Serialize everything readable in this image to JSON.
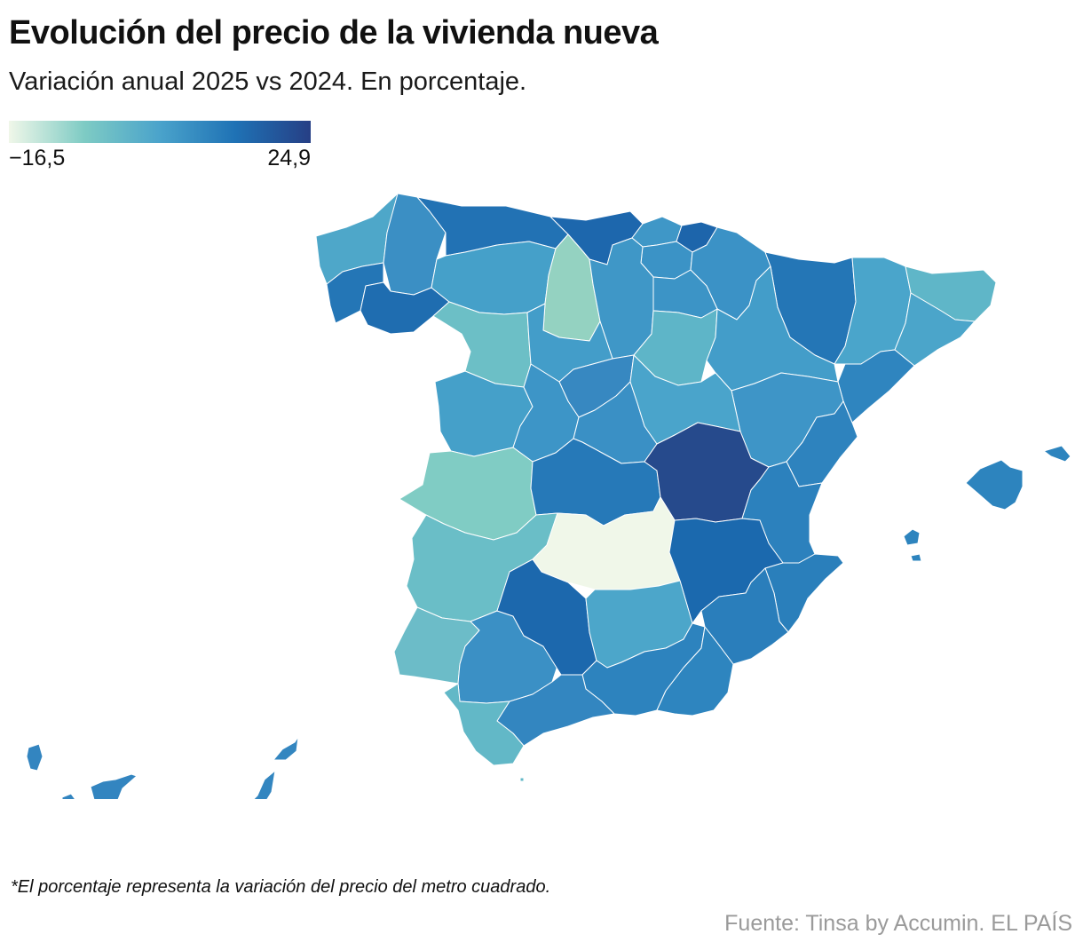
{
  "header": {
    "title": "Evolución del precio de la vivienda nueva",
    "subtitle": "Variación anual 2025 vs 2024. En porcentaje."
  },
  "legend": {
    "min_label": "−16,5",
    "max_label": "24,9",
    "color_stops": [
      "#f0f7e9",
      "#7ecbc4",
      "#4aa3cb",
      "#1f72b5",
      "#263f85"
    ]
  },
  "map": {
    "regions": [
      {
        "name": "A Coruña",
        "color": "#4ea7c9"
      },
      {
        "name": "Lugo",
        "color": "#3b8fc4"
      },
      {
        "name": "Pontevedra",
        "color": "#2476b6"
      },
      {
        "name": "Ourense",
        "color": "#1f6db0"
      },
      {
        "name": "Asturias",
        "color": "#2272b4"
      },
      {
        "name": "Cantabria",
        "color": "#1d67ad"
      },
      {
        "name": "Vizcaya",
        "color": "#3f97c7"
      },
      {
        "name": "Guipúzcoa",
        "color": "#1d65ab"
      },
      {
        "name": "Álava",
        "color": "#3b93c6"
      },
      {
        "name": "Navarra",
        "color": "#3b92c6"
      },
      {
        "name": "Huesca",
        "color": "#2476b6"
      },
      {
        "name": "Girona",
        "color": "#4aa5cb"
      },
      {
        "name": "Lleida",
        "color": "#5fb6c8"
      },
      {
        "name": "Barcelona",
        "color": "#4ba5ca"
      },
      {
        "name": "Tarragona",
        "color": "#2f85bf"
      },
      {
        "name": "León",
        "color": "#45a0c9"
      },
      {
        "name": "Palencia",
        "color": "#94d2c1"
      },
      {
        "name": "Burgos",
        "color": "#3f97c7"
      },
      {
        "name": "La Rioja",
        "color": "#3c94c6"
      },
      {
        "name": "Zamora",
        "color": "#6cbfc6"
      },
      {
        "name": "Valladolid",
        "color": "#439dc9"
      },
      {
        "name": "Soria",
        "color": "#5eb5c8"
      },
      {
        "name": "Zaragoza",
        "color": "#439dc9"
      },
      {
        "name": "Teruel",
        "color": "#3e95c7"
      },
      {
        "name": "Salamanca",
        "color": "#45a0c9"
      },
      {
        "name": "Segovia",
        "color": "#3788c1"
      },
      {
        "name": "Ávila",
        "color": "#3d95c7"
      },
      {
        "name": "Madrid",
        "color": "#3a90c5"
      },
      {
        "name": "Guadalajara",
        "color": "#4aa4cb"
      },
      {
        "name": "Cáceres",
        "color": "#80ccc4"
      },
      {
        "name": "Toledo",
        "color": "#2679b8"
      },
      {
        "name": "Cuenca",
        "color": "#264a8c"
      },
      {
        "name": "Castellón",
        "color": "#2e83be"
      },
      {
        "name": "Valencia",
        "color": "#2c81bd"
      },
      {
        "name": "Badajoz",
        "color": "#6abec7"
      },
      {
        "name": "Ciudad Real",
        "color": "#f0f7e9"
      },
      {
        "name": "Albacete",
        "color": "#1b69ae"
      },
      {
        "name": "Alicante",
        "color": "#2a7fbb"
      },
      {
        "name": "Huelva",
        "color": "#6cbcc8"
      },
      {
        "name": "Sevilla",
        "color": "#3b90c5"
      },
      {
        "name": "Córdoba",
        "color": "#1c68ad"
      },
      {
        "name": "Jaén",
        "color": "#4ca6ca"
      },
      {
        "name": "Murcia",
        "color": "#2a7ebb"
      },
      {
        "name": "Granada",
        "color": "#2d83be"
      },
      {
        "name": "Almería",
        "color": "#2e85bf"
      },
      {
        "name": "Málaga",
        "color": "#3386c0"
      },
      {
        "name": "Cádiz",
        "color": "#62b8c7"
      },
      {
        "name": "Baleares",
        "color": "#2d84be"
      },
      {
        "name": "Santa Cruz de Tenerife",
        "color": "#3385c0"
      },
      {
        "name": "Las Palmas",
        "color": "#3386c0"
      }
    ]
  },
  "footnote": "*El porcentaje representa la variación del precio del metro cuadrado.",
  "source": "Fuente: Tinsa by Accumin. EL PAÍS"
}
